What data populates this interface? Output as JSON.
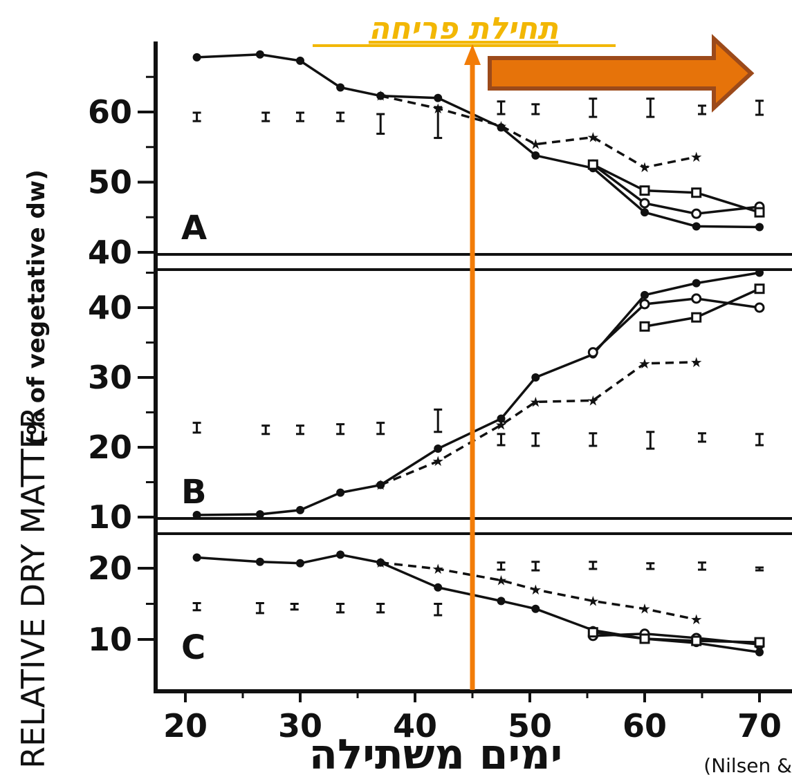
{
  "annotation": {
    "title": "תחילת פריחה",
    "x_label": "ימים משתילה",
    "citation": "(Nilsen &",
    "marker_day": 45,
    "marker_color": "#f27c07",
    "arrow_fill": "#e6730a",
    "arrow_stroke": "#9c4a1a",
    "title_color": "#f2b705"
  },
  "chart_data": {
    "type": "line",
    "ylabel": "RELATIVE  DRY MATTER",
    "ylabel_paren": "(% of vegetative dw)",
    "x_ticks": [
      20,
      30,
      40,
      50,
      60,
      70
    ],
    "xlim": [
      18,
      73
    ],
    "panels": [
      {
        "label": "A",
        "ylim": [
          40,
          70
        ],
        "y_ticks": [
          40,
          50,
          60
        ],
        "series": [
          {
            "marker": "filled-circle",
            "style": "solid",
            "x": [
              21,
              26.5,
              30,
              33.5,
              37,
              42,
              47.5,
              50.5,
              55.5,
              60,
              64.5,
              70
            ],
            "y": [
              67.8,
              68.2,
              67.3,
              63.5,
              62.3,
              62,
              57.8,
              53.8,
              52,
              45.7,
              43.7,
              43.6
            ]
          },
          {
            "marker": "open-circle",
            "style": "solid",
            "x": [
              55.5,
              60,
              64.5,
              70
            ],
            "y": [
              52.5,
              47,
              45.5,
              46.5
            ]
          },
          {
            "marker": "open-square",
            "style": "solid",
            "x": [
              55.5,
              60,
              64.5,
              70
            ],
            "y": [
              52.5,
              48.8,
              48.5,
              45.7
            ]
          },
          {
            "marker": "star",
            "style": "dashed",
            "x": [
              37,
              42,
              47.5,
              50.5,
              55.5,
              60,
              64.5
            ],
            "y": [
              62.3,
              60.5,
              58,
              55.4,
              56.4,
              52.1,
              53.6
            ]
          }
        ],
        "error_bars": [
          {
            "x": 21,
            "y": 59.3,
            "e": 0.6
          },
          {
            "x": 27,
            "y": 59.3,
            "e": 0.6
          },
          {
            "x": 30,
            "y": 59.3,
            "e": 0.6
          },
          {
            "x": 33.5,
            "y": 59.3,
            "e": 0.6
          },
          {
            "x": 37,
            "y": 58.3,
            "e": 1.4
          },
          {
            "x": 42,
            "y": 58.5,
            "e": 2.2
          },
          {
            "x": 47.5,
            "y": 60.6,
            "e": 0.9
          },
          {
            "x": 50.5,
            "y": 60.4,
            "e": 0.7
          },
          {
            "x": 55.5,
            "y": 60.6,
            "e": 1.3
          },
          {
            "x": 60.5,
            "y": 60.6,
            "e": 1.3
          },
          {
            "x": 65,
            "y": 60.3,
            "e": 0.6
          },
          {
            "x": 70,
            "y": 60.6,
            "e": 1.0
          }
        ]
      },
      {
        "label": "B",
        "ylim": [
          10,
          46
        ],
        "y_ticks": [
          10,
          20,
          30,
          40
        ],
        "series": [
          {
            "marker": "filled-circle",
            "style": "solid",
            "x": [
              21,
              26.5,
              30,
              33.5,
              37,
              42,
              47.5,
              50.5,
              55.5,
              60,
              64.5,
              70
            ],
            "y": [
              10.3,
              10.4,
              11,
              13.5,
              14.6,
              19.8,
              24.1,
              30,
              33.3,
              41.8,
              43.5,
              45
            ]
          },
          {
            "marker": "open-circle",
            "style": "solid",
            "x": [
              55.5,
              60,
              64.5,
              70
            ],
            "y": [
              33.6,
              40.5,
              41.3,
              40
            ]
          },
          {
            "marker": "open-square",
            "style": "solid",
            "x": [
              60,
              64.5,
              70
            ],
            "y": [
              37.3,
              38.6,
              42.7
            ]
          },
          {
            "marker": "star",
            "style": "dashed",
            "x": [
              37,
              42,
              47.5,
              50.5,
              55.5,
              60,
              64.5
            ],
            "y": [
              14.6,
              18,
              23.2,
              26.5,
              26.7,
              32,
              32.2
            ]
          }
        ],
        "error_bars": [
          {
            "x": 21,
            "y": 22.8,
            "e": 0.7
          },
          {
            "x": 27,
            "y": 22.5,
            "e": 0.6
          },
          {
            "x": 30,
            "y": 22.5,
            "e": 0.6
          },
          {
            "x": 33.5,
            "y": 22.6,
            "e": 0.7
          },
          {
            "x": 37,
            "y": 22.7,
            "e": 0.8
          },
          {
            "x": 42,
            "y": 23.8,
            "e": 1.6
          },
          {
            "x": 47.5,
            "y": 21.1,
            "e": 0.8
          },
          {
            "x": 50.5,
            "y": 21.1,
            "e": 0.9
          },
          {
            "x": 55.5,
            "y": 21.1,
            "e": 0.9
          },
          {
            "x": 60.5,
            "y": 21,
            "e": 1.2
          },
          {
            "x": 65,
            "y": 21.4,
            "e": 0.6
          },
          {
            "x": 70,
            "y": 21.1,
            "e": 0.8
          }
        ]
      },
      {
        "label": "C",
        "ylim": [
          5,
          25
        ],
        "y_ticks": [
          10,
          20
        ],
        "series": [
          {
            "marker": "filled-circle",
            "style": "solid",
            "x": [
              21,
              26.5,
              30,
              33.5,
              37,
              42,
              47.5,
              50.5,
              55.5,
              60,
              64.5,
              70
            ],
            "y": [
              21.5,
              20.9,
              20.7,
              21.9,
              20.8,
              17.3,
              15.4,
              14.3,
              11.3,
              10.1,
              9.5,
              8.2
            ]
          },
          {
            "marker": "open-circle",
            "style": "solid",
            "x": [
              55.5,
              60,
              64.5,
              70
            ],
            "y": [
              10.5,
              10.8,
              10.2,
              9.3
            ]
          },
          {
            "marker": "open-square",
            "style": "solid",
            "x": [
              55.5,
              60,
              64.5,
              70
            ],
            "y": [
              11,
              10.1,
              9.8,
              9.6
            ]
          },
          {
            "marker": "star",
            "style": "dashed",
            "x": [
              37,
              42,
              47.5,
              50.5,
              55.5,
              60,
              64.5
            ],
            "y": [
              20.8,
              19.9,
              18.3,
              17,
              15.4,
              14.3,
              12.8
            ]
          }
        ],
        "error_bars": [
          {
            "x": 21,
            "y": 14.6,
            "e": 0.5
          },
          {
            "x": 26.5,
            "y": 14.4,
            "e": 0.7
          },
          {
            "x": 29.5,
            "y": 14.6,
            "e": 0.4
          },
          {
            "x": 33.5,
            "y": 14.4,
            "e": 0.6
          },
          {
            "x": 37,
            "y": 14.4,
            "e": 0.6
          },
          {
            "x": 42,
            "y": 14.2,
            "e": 0.8
          },
          {
            "x": 47.5,
            "y": 20.3,
            "e": 0.5
          },
          {
            "x": 50.5,
            "y": 20.3,
            "e": 0.6
          },
          {
            "x": 55.5,
            "y": 20.4,
            "e": 0.5
          },
          {
            "x": 60.5,
            "y": 20.3,
            "e": 0.4
          },
          {
            "x": 65,
            "y": 20.3,
            "e": 0.5
          },
          {
            "x": 70,
            "y": 19.9,
            "e": 0.2
          }
        ]
      }
    ]
  }
}
